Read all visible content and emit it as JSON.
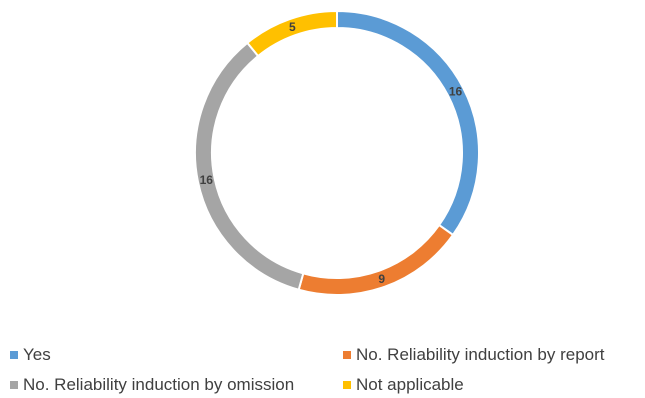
{
  "chart_data": {
    "type": "pie",
    "variant": "doughnut",
    "title": "",
    "categories": [
      "Yes",
      "No. Reliability induction by report",
      "No. Reliability induction by omission",
      "Not applicable"
    ],
    "values": [
      16,
      9,
      16,
      5
    ],
    "colors": [
      "#5B9BD5",
      "#ED7D31",
      "#A5A5A5",
      "#FFC000"
    ],
    "legend_position": "bottom"
  }
}
